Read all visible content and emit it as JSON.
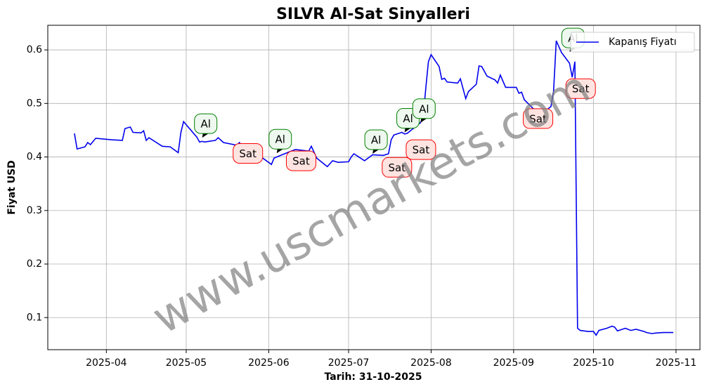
{
  "chart_data": {
    "type": "line",
    "title": "SILVR Al-Sat Sinyalleri",
    "xlabel": "Tarih: 31-10-2025",
    "ylabel": "Fiyat USD",
    "watermark": "www.uscmarkets.com",
    "legend": "upper right",
    "grid": true,
    "xlim": [
      "2025-03-10",
      "2025-11-10"
    ],
    "xticks": [
      "2025-04",
      "2025-05",
      "2025-06",
      "2025-07",
      "2025-08",
      "2025-09",
      "2025-10",
      "2025-11"
    ],
    "ylim": [
      0.04,
      0.646
    ],
    "yticks": [
      0.1,
      0.2,
      0.3,
      0.4,
      0.5,
      0.6
    ],
    "x": [
      "2025-03-20",
      "2025-03-21",
      "2025-03-24",
      "2025-03-25",
      "2025-03-26",
      "2025-03-28",
      "2025-04-03",
      "2025-04-07",
      "2025-04-08",
      "2025-04-10",
      "2025-04-11",
      "2025-04-14",
      "2025-04-15",
      "2025-04-16",
      "2025-04-17",
      "2025-04-22",
      "2025-04-25",
      "2025-04-28",
      "2025-04-29",
      "2025-04-30",
      "2025-05-05",
      "2025-05-06",
      "2025-05-07",
      "2025-05-08",
      "2025-05-12",
      "2025-05-13",
      "2025-05-15",
      "2025-05-20",
      "2025-05-21",
      "2025-05-22",
      "2025-05-28",
      "2025-05-30",
      "2025-06-02",
      "2025-06-03",
      "2025-06-05",
      "2025-06-09",
      "2025-06-11",
      "2025-06-16",
      "2025-06-17",
      "2025-06-19",
      "2025-06-23",
      "2025-06-25",
      "2025-06-27",
      "2025-07-01",
      "2025-07-02",
      "2025-07-03",
      "2025-07-07",
      "2025-07-10",
      "2025-07-14",
      "2025-07-16",
      "2025-07-17",
      "2025-07-18",
      "2025-07-21",
      "2025-07-22",
      "2025-07-23",
      "2025-07-28",
      "2025-07-29",
      "2025-07-30",
      "2025-07-31",
      "2025-08-01",
      "2025-08-04",
      "2025-08-05",
      "2025-08-06",
      "2025-08-07",
      "2025-08-11",
      "2025-08-12",
      "2025-08-14",
      "2025-08-15",
      "2025-08-18",
      "2025-08-19",
      "2025-08-20",
      "2025-08-22",
      "2025-08-25",
      "2025-08-26",
      "2025-08-27",
      "2025-08-29",
      "2025-09-02",
      "2025-09-03",
      "2025-09-04",
      "2025-09-05",
      "2025-09-09",
      "2025-09-12",
      "2025-09-15",
      "2025-09-16",
      "2025-09-17",
      "2025-09-19",
      "2025-09-22",
      "2025-09-23",
      "2025-09-24",
      "2025-09-25",
      "2025-09-26",
      "2025-09-29",
      "2025-10-01",
      "2025-10-02",
      "2025-10-03",
      "2025-10-06",
      "2025-10-08",
      "2025-10-09",
      "2025-10-10",
      "2025-10-13",
      "2025-10-15",
      "2025-10-17",
      "2025-10-20",
      "2025-10-21",
      "2025-10-23",
      "2025-10-24",
      "2025-10-27",
      "2025-10-31"
    ],
    "series": [
      {
        "name": "Kapanış Fiyatı",
        "color": "#0000ee",
        "values": [
          0.444,
          0.415,
          0.419,
          0.427,
          0.423,
          0.435,
          0.432,
          0.431,
          0.453,
          0.456,
          0.446,
          0.445,
          0.449,
          0.431,
          0.436,
          0.42,
          0.419,
          0.408,
          0.446,
          0.466,
          0.437,
          0.428,
          0.429,
          0.428,
          0.431,
          0.436,
          0.427,
          0.422,
          0.427,
          0.419,
          0.404,
          0.397,
          0.386,
          0.398,
          0.402,
          0.41,
          0.414,
          0.411,
          0.42,
          0.398,
          0.382,
          0.393,
          0.39,
          0.391,
          0.4,
          0.406,
          0.393,
          0.404,
          0.403,
          0.406,
          0.432,
          0.441,
          0.446,
          0.443,
          0.444,
          0.464,
          0.475,
          0.529,
          0.578,
          0.591,
          0.569,
          0.545,
          0.547,
          0.54,
          0.538,
          0.546,
          0.509,
          0.522,
          0.536,
          0.57,
          0.569,
          0.551,
          0.544,
          0.538,
          0.553,
          0.53,
          0.53,
          0.519,
          0.521,
          0.507,
          0.487,
          0.483,
          0.494,
          0.523,
          0.617,
          0.595,
          0.575,
          0.549,
          0.578,
          0.08,
          0.076,
          0.074,
          0.074,
          0.067,
          0.076,
          0.08,
          0.084,
          0.082,
          0.075,
          0.08,
          0.076,
          0.078,
          0.074,
          0.072,
          0.07,
          0.071,
          0.072,
          0.072
        ]
      }
    ],
    "annotations": [
      {
        "text": "Al",
        "x": "2025-05-07",
        "y": 0.436,
        "color": "green"
      },
      {
        "text": "Sat",
        "x": "2025-05-21",
        "y": 0.425,
        "color": "red"
      },
      {
        "text": "Al",
        "x": "2025-06-04",
        "y": 0.407,
        "color": "green"
      },
      {
        "text": "Sat",
        "x": "2025-06-10",
        "y": 0.411,
        "color": "red"
      },
      {
        "text": "Al",
        "x": "2025-07-10",
        "y": 0.406,
        "color": "green"
      },
      {
        "text": "Sat",
        "x": "2025-07-16",
        "y": 0.399,
        "color": "red"
      },
      {
        "text": "Al",
        "x": "2025-07-22",
        "y": 0.446,
        "color": "green"
      },
      {
        "text": "Sat",
        "x": "2025-07-25",
        "y": 0.432,
        "color": "red"
      },
      {
        "text": "Al",
        "x": "2025-07-28",
        "y": 0.464,
        "color": "green"
      },
      {
        "text": "Sat",
        "x": "2025-09-07",
        "y": 0.49,
        "color": "red"
      },
      {
        "text": "Al",
        "x": "2025-09-22",
        "y": 0.596,
        "color": "green"
      },
      {
        "text": "Sat",
        "x": "2025-09-23",
        "y": 0.546,
        "color": "red"
      }
    ]
  }
}
